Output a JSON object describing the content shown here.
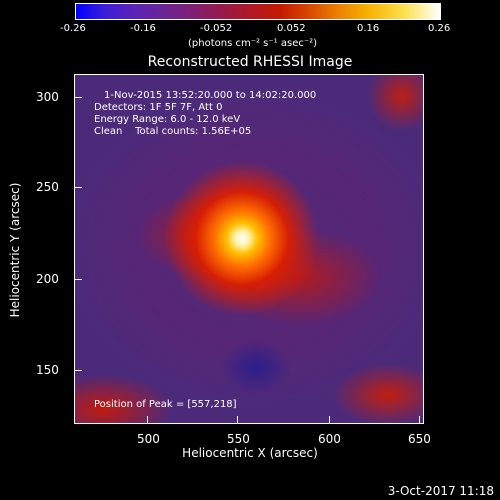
{
  "colorbar": {
    "ticks": [
      "-0.26",
      "-0.16",
      "-0.052",
      "0.052",
      "0.16",
      "0.26"
    ],
    "units": "(photons cm⁻² s⁻¹ asec⁻²)"
  },
  "title": "Reconstructed RHESSI Image",
  "annotations": {
    "time_range": "1-Nov-2015 13:52:20.000 to 14:02:20.000",
    "detectors": "Detectors: 1F 5F 7F, Att 0",
    "energy": "Energy Range: 6.0 - 12.0 keV",
    "method": "Clean    Total counts: 1.56E+05",
    "peak": "Position of Peak = [557,218]"
  },
  "axes": {
    "xlabel": "Heliocentric X (arcsec)",
    "ylabel": "Heliocentric Y (arcsec)",
    "xticks": [
      "500",
      "550",
      "600",
      "650"
    ],
    "yticks": [
      "300",
      "250",
      "200",
      "150"
    ]
  },
  "timestamp": "3-Oct-2017 11:18"
}
